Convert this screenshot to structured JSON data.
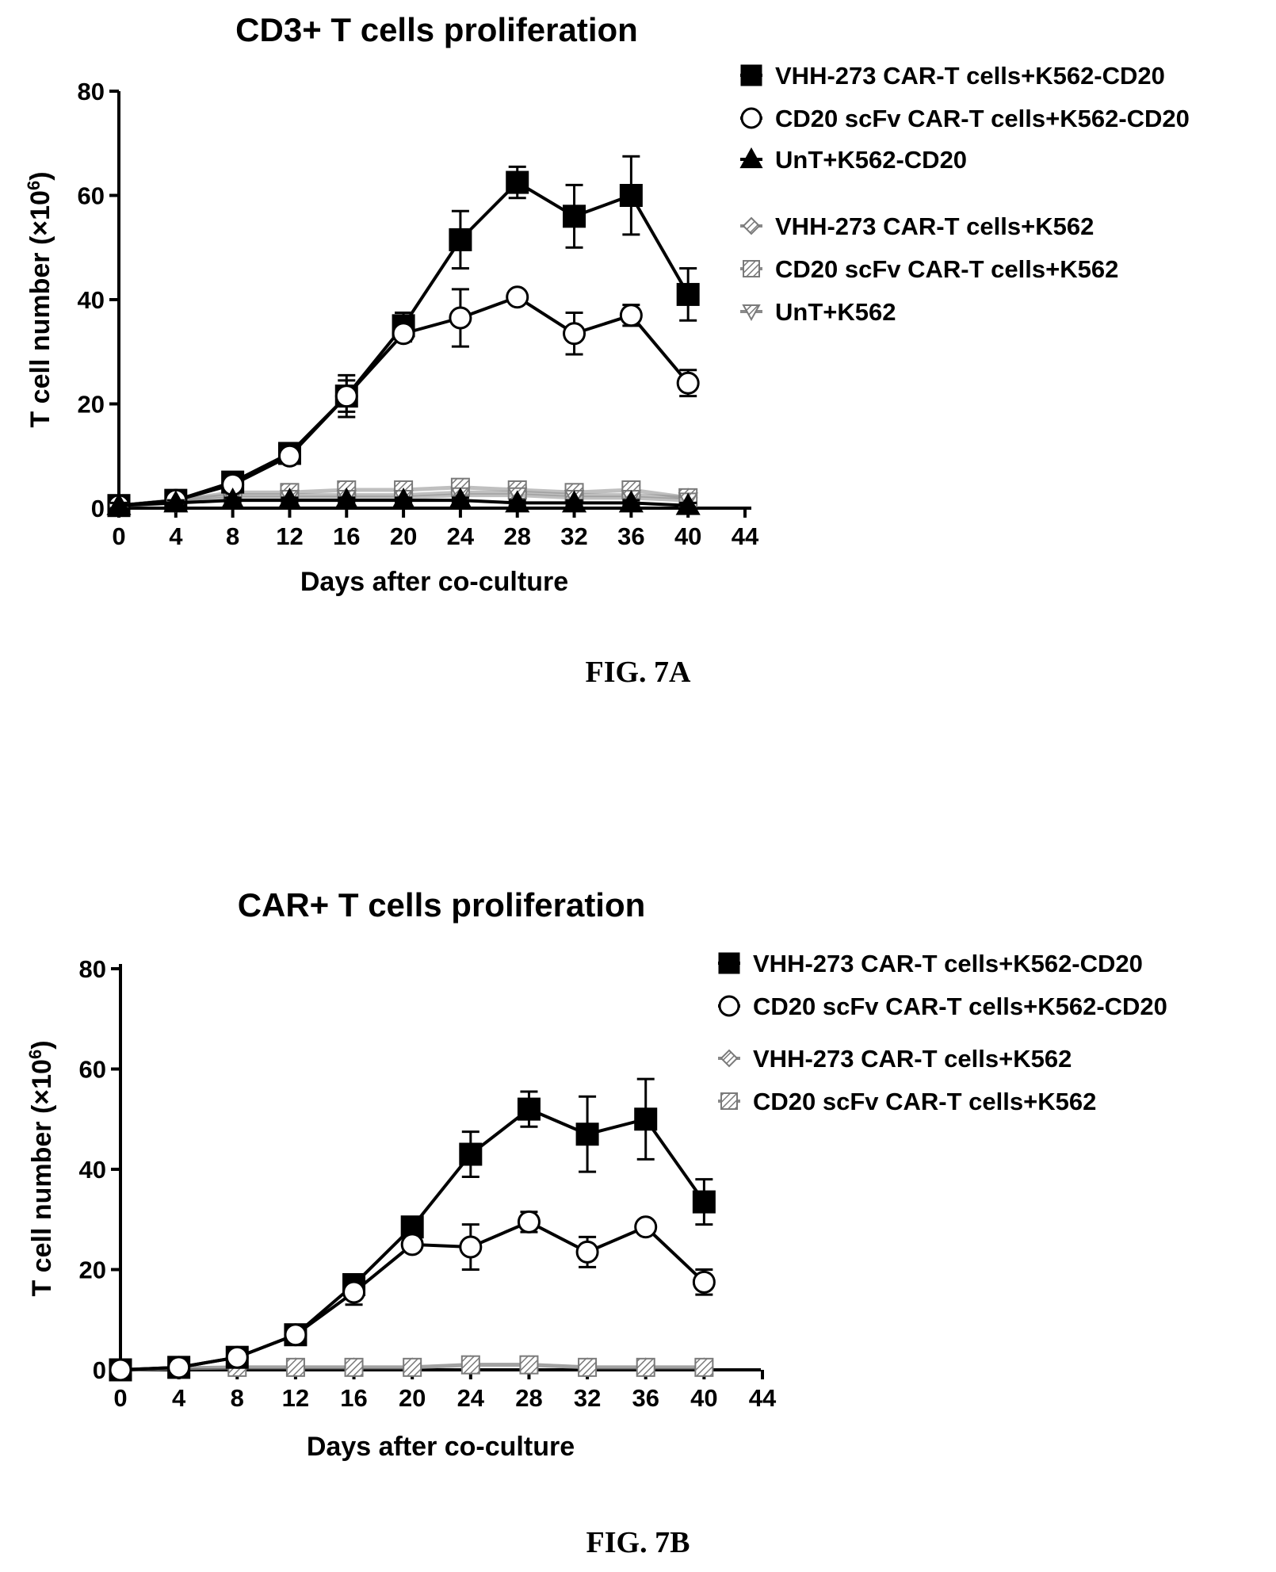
{
  "chart_data": [
    {
      "type": "line",
      "title": "CD3+ T cells proliferation",
      "xlabel": "Days after co-culture",
      "ylabel": "T cell number (×10",
      "ylabel_sup": "6",
      "ylabel_close": ")",
      "caption": "FIG. 7A",
      "xlim": [
        0,
        44
      ],
      "ylim": [
        0,
        80
      ],
      "x_ticks": [
        "0",
        "4",
        "8",
        "12",
        "16",
        "20",
        "24",
        "28",
        "32",
        "36",
        "40",
        "44"
      ],
      "y_ticks": [
        "0",
        "20",
        "40",
        "60",
        "80"
      ],
      "grid": false,
      "legend_position": "top-right",
      "x": [
        0,
        4,
        8,
        12,
        16,
        20,
        24,
        28,
        32,
        36,
        40
      ],
      "series": [
        {
          "name": "VHH-273 CAR-T cells+K562-CD20",
          "marker": "filled-square",
          "color": "#000000",
          "values": [
            0.5,
            1.5,
            5,
            10.5,
            21.5,
            35,
            51.5,
            62.5,
            56,
            60,
            41
          ],
          "errors": [
            0.5,
            1,
            1,
            1.5,
            4,
            2.5,
            5.5,
            3,
            6,
            7.5,
            5
          ]
        },
        {
          "name": "CD20 scFv CAR-T cells+K562-CD20",
          "marker": "open-circle",
          "color": "#000000",
          "values": [
            0.5,
            1.5,
            4.5,
            10,
            21.5,
            33.5,
            36.5,
            40.5,
            33.5,
            37,
            24
          ],
          "errors": [
            0.5,
            1,
            1,
            1,
            3,
            1.5,
            5.5,
            0.5,
            4,
            2,
            2.5
          ]
        },
        {
          "name": "UnT+K562-CD20",
          "marker": "filled-triangle",
          "color": "#000000",
          "values": [
            0.5,
            1,
            1.5,
            1.5,
            1.5,
            1.5,
            1.5,
            1,
            1,
            1,
            0.5
          ],
          "errors": [
            0.5,
            0.5,
            0.5,
            0.5,
            0.5,
            0.5,
            0.5,
            0.5,
            0.5,
            0.5,
            0.5
          ]
        },
        {
          "name": "VHH-273 CAR-T cells+K562",
          "marker": "hatched-diamond",
          "color": "#8a8a8a",
          "values": [
            0.5,
            1.5,
            2.5,
            2.5,
            2.5,
            2.5,
            3,
            3,
            2.5,
            2.5,
            2
          ],
          "errors": [
            0.5,
            0.5,
            1,
            1,
            1,
            1,
            1,
            1,
            1,
            1,
            1
          ]
        },
        {
          "name": "CD20 scFv CAR-T cells+K562",
          "marker": "hatched-square",
          "color": "#8a8a8a",
          "values": [
            0.5,
            1.5,
            3,
            3,
            3.5,
            3.5,
            4,
            3.5,
            3,
            3.5,
            2
          ],
          "errors": [
            0.5,
            0.5,
            1,
            1,
            1,
            1,
            1.5,
            1,
            1,
            1.5,
            1
          ]
        },
        {
          "name": "UnT+K562",
          "marker": "hatched-triangle-down",
          "color": "#8a8a8a",
          "values": [
            0.5,
            1,
            2,
            2,
            2,
            2,
            2.5,
            2.5,
            2,
            2,
            1.5
          ],
          "errors": [
            0.5,
            0.5,
            0.5,
            0.5,
            0.5,
            0.5,
            1,
            1,
            0.5,
            0.5,
            0.5
          ]
        }
      ]
    },
    {
      "type": "line",
      "title": "CAR+ T cells proliferation",
      "xlabel": "Days after co-culture",
      "ylabel": "T cell number (×10",
      "ylabel_sup": "6",
      "ylabel_close": ")",
      "caption": "FIG. 7B",
      "xlim": [
        0,
        44
      ],
      "ylim": [
        0,
        80
      ],
      "x_ticks": [
        "0",
        "4",
        "8",
        "12",
        "16",
        "20",
        "24",
        "28",
        "32",
        "36",
        "40",
        "44"
      ],
      "y_ticks": [
        "0",
        "20",
        "40",
        "60",
        "80"
      ],
      "grid": false,
      "legend_position": "top-right",
      "x": [
        0,
        4,
        8,
        12,
        16,
        20,
        24,
        28,
        32,
        36,
        40
      ],
      "series": [
        {
          "name": "VHH-273 CAR-T cells+K562-CD20",
          "marker": "filled-square",
          "color": "#000000",
          "values": [
            0,
            0.5,
            2.5,
            7,
            17,
            28.5,
            43,
            52,
            47,
            50,
            33.5
          ],
          "errors": [
            0,
            0.3,
            0.5,
            1,
            1.5,
            1.5,
            4.5,
            3.5,
            7.5,
            8,
            4.5
          ]
        },
        {
          "name": "CD20 scFv CAR-T cells+K562-CD20",
          "marker": "open-circle",
          "color": "#000000",
          "values": [
            0,
            0.5,
            2.5,
            7,
            15.5,
            25,
            24.5,
            29.5,
            23.5,
            28.5,
            17.5
          ],
          "errors": [
            0,
            0.3,
            0.5,
            1,
            2.5,
            1,
            4.5,
            2,
            3,
            1,
            2.5
          ]
        },
        {
          "name": "VHH-273 CAR-T cells+K562",
          "marker": "hatched-diamond",
          "color": "#8a8a8a",
          "values": [
            0,
            0.3,
            0.5,
            0.5,
            0.5,
            0.5,
            1,
            1,
            0.5,
            0.5,
            0.5
          ],
          "errors": [
            0,
            0.3,
            0.3,
            0.3,
            0.3,
            0.3,
            0.5,
            0.5,
            0.3,
            0.3,
            0.3
          ]
        },
        {
          "name": "CD20 scFv CAR-T cells+K562",
          "marker": "hatched-square",
          "color": "#8a8a8a",
          "values": [
            0,
            0.3,
            0.5,
            0.5,
            0.5,
            0.5,
            1,
            1,
            0.5,
            0.5,
            0.5
          ],
          "errors": [
            0,
            0.3,
            0.3,
            0.3,
            0.3,
            0.3,
            0.5,
            0.5,
            0.3,
            0.3,
            0.3
          ]
        }
      ]
    }
  ]
}
